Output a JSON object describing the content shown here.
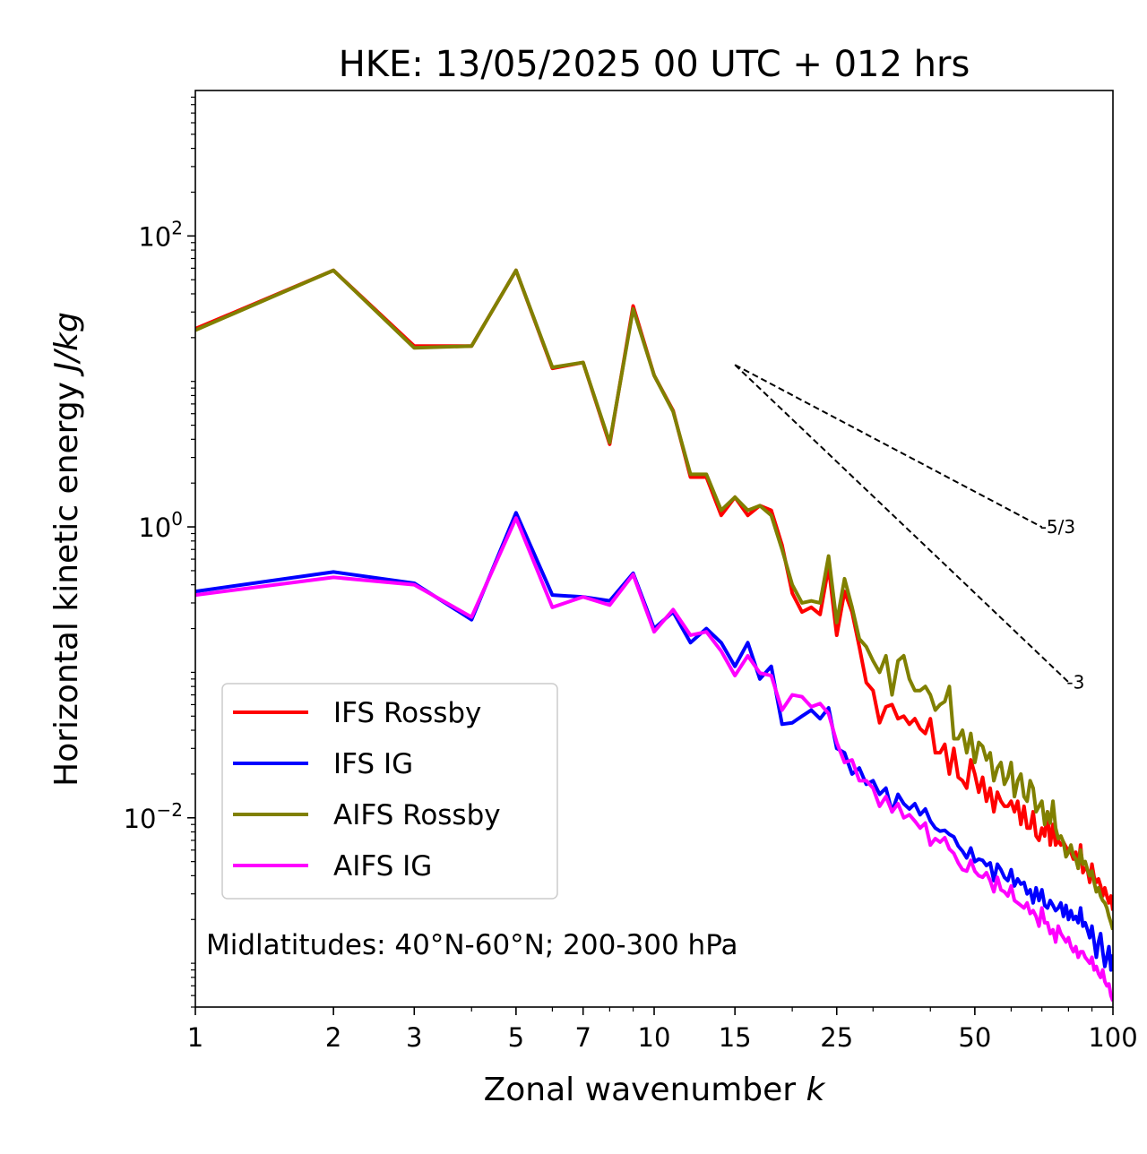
{
  "chart_data": {
    "type": "line",
    "title": "HKE: 13/05/2025 00 UTC + 012 hrs",
    "xlabel_text": "Zonal wavenumber ",
    "xlabel_var": "k",
    "ylabel_text": "Horizontal kinetic energy ",
    "ylabel_units": "J/kg",
    "xscale": "log",
    "yscale": "log",
    "xlim": [
      1,
      100
    ],
    "ylim": [
      0.0005,
      1000
    ],
    "xticks": [
      1,
      2,
      3,
      5,
      7,
      10,
      15,
      25,
      50,
      100
    ],
    "xtick_labels": [
      "1",
      "2",
      "3",
      "5",
      "7",
      "10",
      "15",
      "25",
      "50",
      "100"
    ],
    "yticks": [
      0.01,
      1,
      100
    ],
    "ytick_labels": [
      {
        "base": "10",
        "exp": "−2"
      },
      {
        "base": "10",
        "exp": "0"
      },
      {
        "base": "10",
        "exp": "2"
      }
    ],
    "grid": false,
    "legend_position": "lower-left",
    "annotation": "Midlatitudes: 40°N-60°N; 200-300 hPa",
    "reference_slopes": [
      {
        "label": "-5/3",
        "slope": -1.6667,
        "x_start": 15,
        "x_end": 70,
        "y_start": 13.0
      },
      {
        "label": "-3",
        "slope": -3,
        "x_start": 15,
        "x_end": 80,
        "y_start": 13.0
      }
    ],
    "x": [
      1,
      2,
      3,
      4,
      5,
      6,
      7,
      8,
      9,
      10,
      11,
      12,
      13,
      14,
      15,
      16,
      17,
      18,
      19,
      20,
      21,
      22,
      23,
      24,
      25,
      26,
      27,
      28,
      29,
      30,
      31,
      32,
      33,
      34,
      35,
      36,
      37,
      38,
      39,
      40,
      41,
      42,
      43,
      44,
      45,
      46,
      47,
      48,
      49,
      50,
      51,
      52,
      53,
      54,
      55,
      56,
      57,
      58,
      59,
      60,
      61,
      62,
      63,
      64,
      65,
      66,
      67,
      68,
      69,
      70,
      71,
      72,
      73,
      74,
      75,
      76,
      77,
      78,
      79,
      80,
      81,
      82,
      83,
      84,
      85,
      86,
      87,
      88,
      89,
      90,
      91,
      92,
      93,
      94,
      95,
      96,
      97,
      98,
      99,
      100
    ],
    "series": [
      {
        "name": "IFS Rossby",
        "color": "#ff0000",
        "values": [
          23,
          58,
          17.5,
          17.5,
          58,
          12.3,
          13.5,
          3.7,
          33,
          11,
          6.3,
          2.2,
          2.2,
          1.2,
          1.6,
          1.2,
          1.4,
          1.3,
          0.75,
          0.35,
          0.26,
          0.28,
          0.25,
          0.53,
          0.18,
          0.36,
          0.26,
          0.15,
          0.085,
          0.075,
          0.045,
          0.058,
          0.06,
          0.048,
          0.05,
          0.044,
          0.048,
          0.041,
          0.038,
          0.048,
          0.028,
          0.028,
          0.032,
          0.02,
          0.03,
          0.019,
          0.018,
          0.016,
          0.025,
          0.02,
          0.015,
          0.019,
          0.013,
          0.016,
          0.011,
          0.015,
          0.013,
          0.012,
          0.012,
          0.013,
          0.011,
          0.013,
          0.009,
          0.012,
          0.0085,
          0.0085,
          0.011,
          0.0075,
          0.007,
          0.0085,
          0.0075,
          0.011,
          0.0065,
          0.009,
          0.0065,
          0.007,
          0.0065,
          0.0068,
          0.0063,
          0.006,
          0.0058,
          0.0052,
          0.0058,
          0.0045,
          0.0065,
          0.0042,
          0.0045,
          0.0044,
          0.0036,
          0.0048,
          0.0039,
          0.0036,
          0.0038,
          0.0034,
          0.0029,
          0.0033,
          0.0029,
          0.0026,
          0.0029,
          0.0023
        ]
      },
      {
        "name": "IFS IG",
        "color": "#0000ff",
        "values": [
          0.36,
          0.49,
          0.41,
          0.23,
          1.25,
          0.34,
          0.33,
          0.31,
          0.48,
          0.2,
          0.26,
          0.16,
          0.2,
          0.16,
          0.11,
          0.16,
          0.09,
          0.11,
          0.044,
          0.045,
          0.05,
          0.055,
          0.048,
          0.057,
          0.03,
          0.028,
          0.02,
          0.022,
          0.017,
          0.018,
          0.0145,
          0.016,
          0.011,
          0.0145,
          0.0125,
          0.0115,
          0.0125,
          0.0105,
          0.0115,
          0.0095,
          0.0085,
          0.0081,
          0.0082,
          0.0077,
          0.0074,
          0.0064,
          0.0059,
          0.0053,
          0.0062,
          0.005,
          0.0052,
          0.0051,
          0.0047,
          0.0049,
          0.0037,
          0.0048,
          0.0044,
          0.0039,
          0.0037,
          0.0044,
          0.0034,
          0.0038,
          0.0035,
          0.0036,
          0.003,
          0.0032,
          0.0026,
          0.0033,
          0.0027,
          0.0032,
          0.0025,
          0.0024,
          0.0027,
          0.0025,
          0.0023,
          0.0024,
          0.0026,
          0.0021,
          0.0025,
          0.002,
          0.0023,
          0.002,
          0.0021,
          0.0019,
          0.0024,
          0.0018,
          0.0019,
          0.0017,
          0.0015,
          0.0018,
          0.0014,
          0.0011,
          0.0014,
          0.0016,
          0.0012,
          0.00095,
          0.0011,
          0.0013,
          0.0009,
          0.00115
        ]
      },
      {
        "name": "AIFS Rossby",
        "color": "#808000",
        "values": [
          22.5,
          58,
          17,
          17.5,
          58,
          12.5,
          13.5,
          3.8,
          31.5,
          11,
          6.2,
          2.3,
          2.3,
          1.3,
          1.6,
          1.3,
          1.4,
          1.2,
          0.7,
          0.4,
          0.3,
          0.31,
          0.3,
          0.63,
          0.22,
          0.44,
          0.28,
          0.17,
          0.15,
          0.12,
          0.1,
          0.13,
          0.07,
          0.12,
          0.13,
          0.09,
          0.075,
          0.075,
          0.08,
          0.07,
          0.055,
          0.06,
          0.063,
          0.08,
          0.035,
          0.035,
          0.04,
          0.028,
          0.038,
          0.024,
          0.033,
          0.031,
          0.025,
          0.028,
          0.018,
          0.022,
          0.024,
          0.017,
          0.019,
          0.024,
          0.014,
          0.018,
          0.02,
          0.014,
          0.013,
          0.018,
          0.016,
          0.011,
          0.012,
          0.013,
          0.009,
          0.011,
          0.0092,
          0.013,
          0.0085,
          0.0072,
          0.0075,
          0.0068,
          0.0054,
          0.0058,
          0.0065,
          0.0055,
          0.0052,
          0.0045,
          0.006,
          0.0048,
          0.005,
          0.0044,
          0.004,
          0.0043,
          0.0036,
          0.0031,
          0.0033,
          0.0029,
          0.0027,
          0.0026,
          0.0024,
          0.0021,
          0.0019,
          0.0017
        ]
      },
      {
        "name": "AIFS IG",
        "color": "#ff00ff",
        "values": [
          0.34,
          0.45,
          0.4,
          0.24,
          1.15,
          0.28,
          0.33,
          0.29,
          0.47,
          0.19,
          0.27,
          0.18,
          0.19,
          0.14,
          0.095,
          0.13,
          0.099,
          0.095,
          0.055,
          0.07,
          0.068,
          0.058,
          0.061,
          0.052,
          0.033,
          0.024,
          0.025,
          0.018,
          0.018,
          0.016,
          0.012,
          0.014,
          0.011,
          0.0125,
          0.01,
          0.0105,
          0.0095,
          0.0085,
          0.0092,
          0.0065,
          0.0072,
          0.0068,
          0.0073,
          0.0061,
          0.0057,
          0.0049,
          0.0044,
          0.0043,
          0.0051,
          0.0043,
          0.004,
          0.0039,
          0.0042,
          0.0037,
          0.0031,
          0.0039,
          0.0032,
          0.0031,
          0.0029,
          0.0034,
          0.0027,
          0.0026,
          0.0025,
          0.0024,
          0.0026,
          0.0022,
          0.0023,
          0.0021,
          0.0018,
          0.0024,
          0.0019,
          0.0019,
          0.0016,
          0.0017,
          0.0014,
          0.0018,
          0.0016,
          0.0015,
          0.0014,
          0.0015,
          0.0013,
          0.0012,
          0.0013,
          0.0011,
          0.0012,
          0.0012,
          0.0011,
          0.00105,
          0.001,
          0.0011,
          0.0009,
          0.00095,
          0.00085,
          0.0008,
          0.0009,
          0.00075,
          0.0007,
          0.00072,
          0.0006,
          0.00055
        ]
      }
    ]
  }
}
